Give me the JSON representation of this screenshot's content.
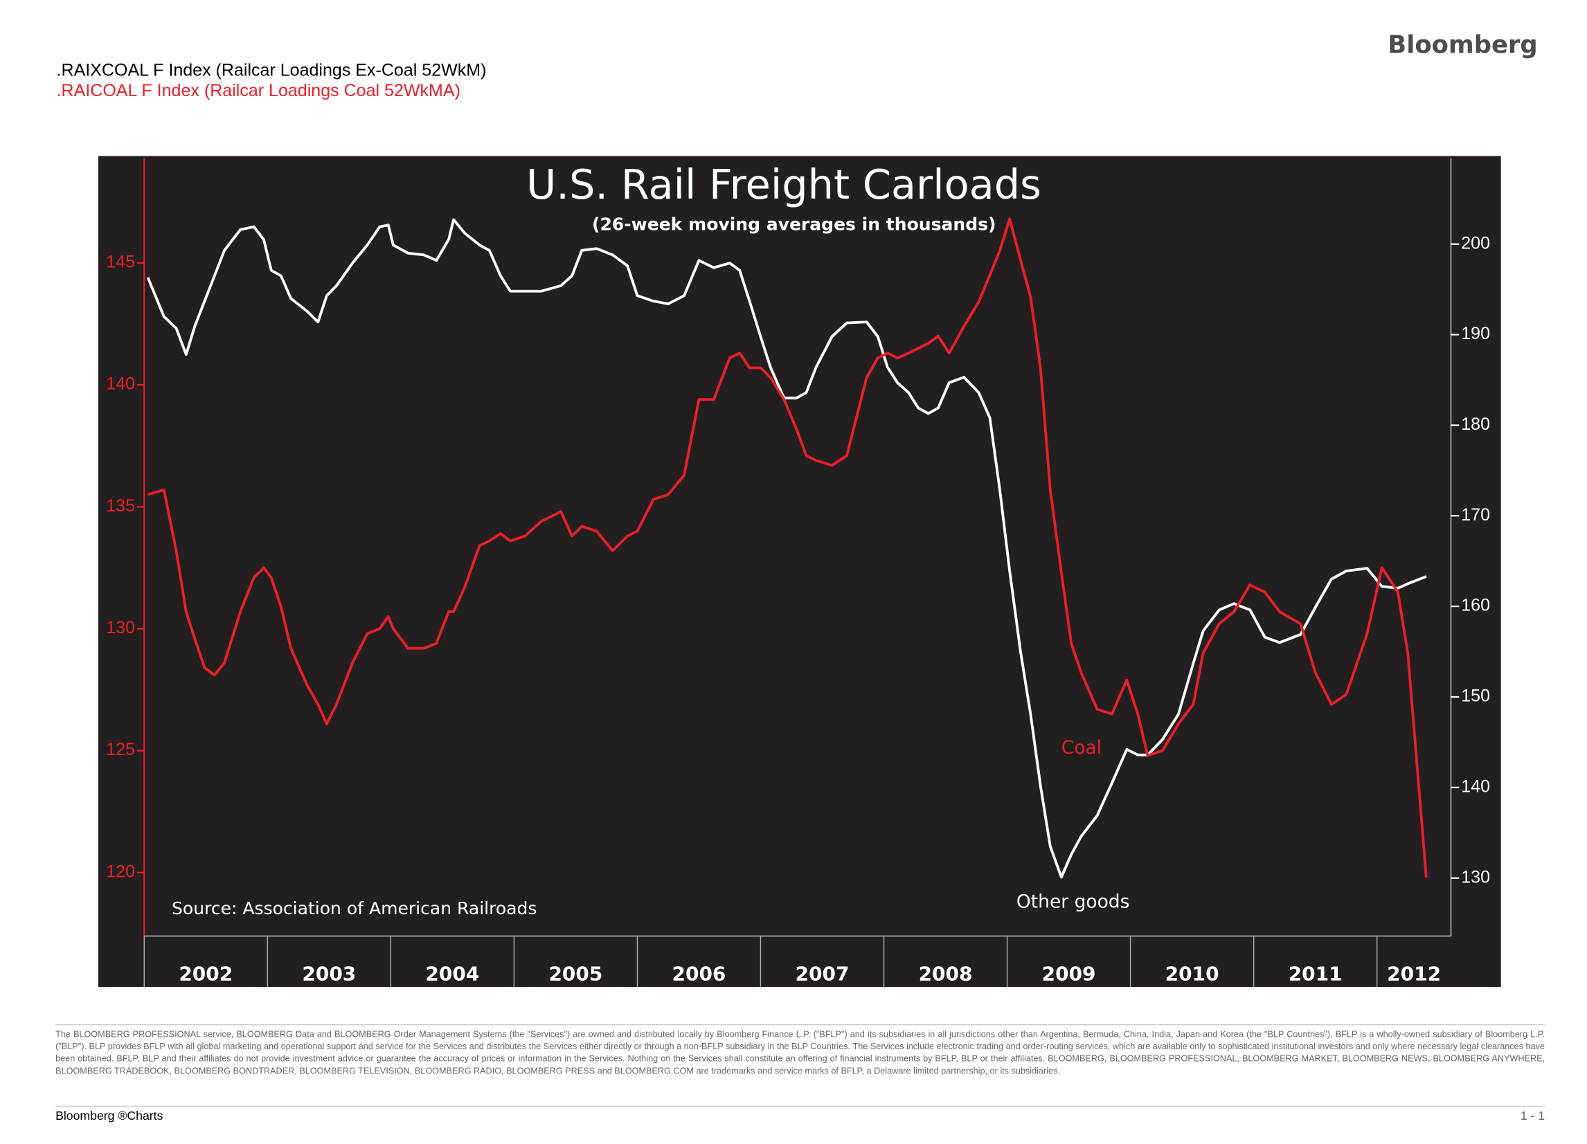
{
  "brand": "Bloomberg",
  "chart_data": {
    "type": "line",
    "title": "U.S. Rail Freight Carloads",
    "subtitle": "(26-week moving averages in thousands)",
    "source": "Source: Association of American Railroads",
    "annotations": [
      "Coal",
      "Other goods"
    ],
    "x": [
      2002.03,
      2002.16,
      2002.26,
      2002.34,
      2002.41,
      2002.49,
      2002.57,
      2002.65,
      2002.78,
      2002.89,
      2002.97,
      2003.03,
      2003.11,
      2003.19,
      2003.32,
      2003.41,
      2003.48,
      2003.56,
      2003.69,
      2003.81,
      2003.91,
      2003.98,
      2004.02,
      2004.14,
      2004.27,
      2004.37,
      2004.47,
      2004.51,
      2004.6,
      2004.72,
      2004.8,
      2004.89,
      2004.97,
      2005.09,
      2005.22,
      2005.38,
      2005.47,
      2005.55,
      2005.67,
      2005.8,
      2005.92,
      2006.0,
      2006.13,
      2006.25,
      2006.38,
      2006.5,
      2006.62,
      2006.75,
      2006.83,
      2006.91,
      2007.0,
      2007.08,
      2007.19,
      2007.29,
      2007.37,
      2007.45,
      2007.58,
      2007.7,
      2007.86,
      2007.95,
      2008.03,
      2008.11,
      2008.2,
      2008.28,
      2008.36,
      2008.44,
      2008.53,
      2008.65,
      2008.77,
      2008.86,
      2008.94,
      2009.02,
      2009.11,
      2009.19,
      2009.27,
      2009.35,
      2009.44,
      2009.52,
      2009.6,
      2009.73,
      2009.85,
      2009.97,
      2010.06,
      2010.14,
      2010.26,
      2010.39,
      2010.51,
      2010.59,
      2010.72,
      2010.84,
      2010.97,
      2011.09,
      2011.21,
      2011.38,
      2011.5,
      2011.63,
      2011.75,
      2011.92,
      2012.04,
      2012.17,
      2012.25,
      2012.4
    ],
    "series": [
      {
        "name": ".RAIXCOAL F Index (Railcar Loadings Ex-Coal 52WkM)",
        "color": "#ffffff",
        "legend_color": "#000000",
        "axis": "y2",
        "values": [
          196.3,
          192.0,
          190.7,
          187.8,
          190.9,
          193.7,
          196.5,
          199.3,
          201.6,
          201.9,
          200.5,
          197.1,
          196.5,
          194.0,
          192.6,
          191.4,
          194.3,
          195.4,
          197.9,
          199.9,
          201.9,
          202.1,
          199.9,
          199.0,
          198.8,
          198.2,
          200.5,
          202.7,
          201.2,
          199.9,
          199.3,
          196.5,
          194.8,
          194.8,
          194.8,
          195.4,
          196.5,
          199.3,
          199.5,
          198.8,
          197.6,
          194.3,
          193.7,
          193.4,
          194.3,
          198.2,
          197.4,
          197.9,
          197.1,
          193.7,
          189.8,
          186.4,
          183.0,
          183.0,
          183.6,
          186.4,
          189.8,
          191.3,
          191.4,
          189.8,
          186.4,
          184.7,
          183.6,
          181.9,
          181.3,
          181.9,
          184.7,
          185.3,
          183.6,
          180.8,
          172.9,
          163.9,
          154.9,
          148.1,
          140.2,
          133.5,
          130.1,
          132.6,
          134.6,
          136.9,
          140.5,
          144.2,
          143.6,
          143.6,
          145.3,
          148.1,
          153.7,
          157.3,
          159.6,
          160.3,
          159.6,
          156.6,
          156.0,
          156.9,
          159.9,
          163.0,
          163.9,
          164.2,
          162.2,
          162.0,
          162.5,
          163.3
        ]
      },
      {
        "name": ".RAICOAL F Index (Railcar Loadings Coal 52WkMA)",
        "color": "#e8202a",
        "legend_color": "#e8202a",
        "axis": "y",
        "values": [
          135.5,
          135.7,
          133.2,
          130.7,
          129.6,
          128.4,
          128.1,
          128.6,
          130.7,
          132.1,
          132.5,
          132.1,
          130.9,
          129.2,
          127.7,
          126.9,
          126.1,
          126.9,
          128.6,
          129.8,
          130.0,
          130.5,
          130.0,
          129.2,
          129.2,
          129.4,
          130.7,
          130.7,
          131.7,
          133.4,
          133.6,
          133.9,
          133.6,
          133.8,
          134.4,
          134.8,
          133.8,
          134.2,
          134.0,
          133.2,
          133.8,
          134.0,
          135.3,
          135.5,
          136.3,
          139.4,
          139.4,
          141.1,
          141.3,
          140.7,
          140.7,
          140.3,
          139.4,
          138.2,
          137.1,
          136.9,
          136.7,
          137.1,
          140.3,
          141.1,
          141.3,
          141.1,
          141.3,
          141.5,
          141.7,
          142.0,
          141.3,
          142.4,
          143.4,
          144.5,
          145.5,
          146.8,
          145.1,
          143.6,
          140.7,
          135.7,
          132.3,
          129.4,
          128.2,
          126.7,
          126.5,
          127.9,
          126.5,
          124.8,
          125.0,
          126.1,
          126.9,
          129.0,
          130.2,
          130.7,
          131.8,
          131.5,
          130.7,
          130.2,
          128.2,
          126.9,
          127.3,
          129.8,
          132.5,
          131.5,
          129.0,
          119.8
        ]
      }
    ],
    "xlim": [
      2002,
      2012.6
    ],
    "xticks": [
      2002,
      2003,
      2004,
      2005,
      2006,
      2007,
      2008,
      2009,
      2010,
      2011,
      2012
    ],
    "ylim": [
      117.4,
      149.3
    ],
    "yticks": [
      120,
      125,
      130,
      135,
      140,
      145
    ],
    "y2lim": [
      123.6,
      209.5
    ],
    "y2ticks": [
      130,
      140,
      150,
      160,
      170,
      180,
      190,
      200
    ],
    "background": "#231f20"
  },
  "disclaimer": "The BLOOMBERG PROFESSIONAL service, BLOOMBERG Data and BLOOMBERG Order Management Systems (the \"Services\") are owned and distributed locally by Bloomberg Finance L.P. (\"BFLP\") and its subsidiaries in all jurisdictions other than Argentina, Bermuda, China, India, Japan and Korea (the \"BLP Countries\"). BFLP is a wholly-owned subsidiary of Bloomberg L.P. (\"BLP\"). BLP provides BFLP with all global marketing and operational support and service for the Services and distributes the Services either directly or through a non-BFLP subsidiary in the BLP Countries. The Services include electronic trading and order-routing services, which are available only to sophisticated institutional investors and only where necessary legal clearances have been obtained. BFLP, BLP and their affiliates do not provide investment advice or guarantee the accuracy of prices or information in the Services. Nothing on the Services shall constitute an offering of financial instruments by BFLP, BLP or their affiliates. BLOOMBERG, BLOOMBERG PROFESSIONAL, BLOOMBERG MARKET, BLOOMBERG NEWS, BLOOMBERG ANYWHERE, BLOOMBERG TRADEBOOK, BLOOMBERG BONDTRADER, BLOOMBERG TELEVISION, BLOOMBERG RADIO, BLOOMBERG PRESS and BLOOMBERG.COM are trademarks and service marks of BFLP, a Delaware limited partnership, or its subsidiaries.",
  "footer": {
    "left": "Bloomberg ®Charts",
    "right": "1 - 1"
  }
}
